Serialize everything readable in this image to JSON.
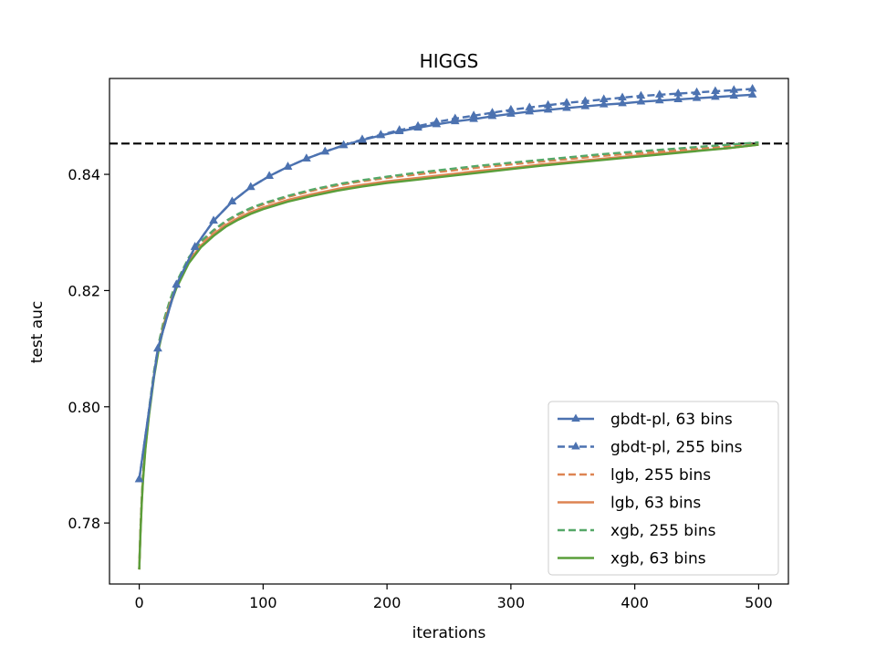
{
  "chart_data": {
    "type": "line",
    "title": "HIGGS",
    "xlabel": "iterations",
    "ylabel": "test auc",
    "xlim": [
      -24,
      524
    ],
    "ylim": [
      0.7695,
      0.8565
    ],
    "xticks": [
      0,
      100,
      200,
      300,
      400,
      500
    ],
    "xtick_labels": [
      "0",
      "100",
      "200",
      "300",
      "400",
      "500"
    ],
    "yticks": [
      0.78,
      0.8,
      0.82,
      0.84
    ],
    "ytick_labels": [
      "0.78",
      "0.80",
      "0.82",
      "0.84"
    ],
    "grid": false,
    "legend_position": "lower-right",
    "reference_line": {
      "y": 0.8453,
      "style": "dashed",
      "color": "#000000"
    },
    "series": [
      {
        "name": "gbdt-pl, 63 bins",
        "color": "#4c72b0",
        "line_style": "solid",
        "marker": "triangle",
        "x": [
          0,
          15,
          30,
          45,
          60,
          75,
          90,
          105,
          120,
          135,
          150,
          165,
          180,
          195,
          210,
          225,
          240,
          255,
          270,
          285,
          300,
          315,
          330,
          345,
          360,
          375,
          390,
          405,
          420,
          435,
          450,
          465,
          480,
          495
        ],
        "values": [
          0.7875,
          0.81,
          0.821,
          0.8275,
          0.832,
          0.8353,
          0.8378,
          0.8397,
          0.8413,
          0.8427,
          0.8439,
          0.845,
          0.8459,
          0.8467,
          0.8474,
          0.848,
          0.8486,
          0.8491,
          0.8495,
          0.85,
          0.8504,
          0.8508,
          0.8511,
          0.8514,
          0.8517,
          0.852,
          0.8522,
          0.8525,
          0.8527,
          0.8529,
          0.8531,
          0.8533,
          0.8535,
          0.8537
        ]
      },
      {
        "name": "gbdt-pl, 255 bins",
        "color": "#4c72b0",
        "line_style": "dashed",
        "marker": "triangle",
        "x": [
          0,
          15,
          30,
          45,
          60,
          75,
          90,
          105,
          120,
          135,
          150,
          165,
          180,
          195,
          210,
          225,
          240,
          255,
          270,
          285,
          300,
          315,
          330,
          345,
          360,
          375,
          390,
          405,
          420,
          435,
          450,
          465,
          480,
          495
        ],
        "values": [
          0.7875,
          0.81,
          0.821,
          0.8275,
          0.832,
          0.8353,
          0.8378,
          0.8397,
          0.8413,
          0.8427,
          0.8439,
          0.845,
          0.846,
          0.8468,
          0.8476,
          0.8483,
          0.849,
          0.8496,
          0.8501,
          0.8506,
          0.8511,
          0.8515,
          0.8519,
          0.8523,
          0.8526,
          0.8529,
          0.8532,
          0.8535,
          0.8537,
          0.8539,
          0.8541,
          0.8543,
          0.8545,
          0.8547
        ]
      },
      {
        "name": "lgb, 255 bins",
        "color": "#dd8452",
        "line_style": "dashed",
        "marker": "none",
        "x": [
          0,
          1,
          2,
          3,
          5,
          8,
          12,
          16,
          20,
          25,
          30,
          40,
          50,
          60,
          70,
          80,
          90,
          100,
          120,
          140,
          160,
          180,
          200,
          225,
          250,
          275,
          300,
          325,
          350,
          375,
          400,
          425,
          450,
          475,
          500
        ],
        "values": [
          0.772,
          0.779,
          0.784,
          0.788,
          0.7935,
          0.7995,
          0.806,
          0.811,
          0.8148,
          0.8183,
          0.8212,
          0.8255,
          0.8283,
          0.8302,
          0.8318,
          0.833,
          0.834,
          0.8348,
          0.8361,
          0.8372,
          0.8381,
          0.8388,
          0.8394,
          0.84,
          0.8406,
          0.8412,
          0.8417,
          0.8422,
          0.8427,
          0.8432,
          0.8436,
          0.844,
          0.8444,
          0.8448,
          0.8453
        ]
      },
      {
        "name": "lgb, 63 bins",
        "color": "#dd8452",
        "line_style": "solid",
        "marker": "none",
        "x": [
          0,
          1,
          2,
          3,
          5,
          8,
          12,
          16,
          20,
          25,
          30,
          40,
          50,
          60,
          70,
          80,
          90,
          100,
          120,
          140,
          160,
          180,
          200,
          225,
          250,
          275,
          300,
          325,
          350,
          375,
          400,
          425,
          450,
          475,
          500
        ],
        "values": [
          0.772,
          0.7785,
          0.7835,
          0.7875,
          0.793,
          0.799,
          0.8055,
          0.8105,
          0.8143,
          0.8178,
          0.8207,
          0.825,
          0.8278,
          0.8297,
          0.8313,
          0.8325,
          0.8335,
          0.8343,
          0.8356,
          0.8366,
          0.8375,
          0.8382,
          0.8388,
          0.8394,
          0.84,
          0.8406,
          0.8411,
          0.8417,
          0.8422,
          0.8427,
          0.8432,
          0.8437,
          0.8441,
          0.8445,
          0.8451
        ]
      },
      {
        "name": "xgb, 255 bins",
        "color": "#55a868",
        "line_style": "dashed",
        "marker": "none",
        "x": [
          0,
          1,
          2,
          3,
          5,
          8,
          12,
          16,
          20,
          25,
          30,
          40,
          50,
          60,
          70,
          80,
          90,
          100,
          120,
          140,
          160,
          180,
          200,
          225,
          250,
          275,
          300,
          325,
          350,
          375,
          400,
          425,
          450,
          475,
          500
        ],
        "values": [
          0.772,
          0.779,
          0.7842,
          0.7882,
          0.7937,
          0.7997,
          0.8062,
          0.8112,
          0.815,
          0.8185,
          0.8214,
          0.8257,
          0.8285,
          0.8304,
          0.832,
          0.8332,
          0.8342,
          0.835,
          0.8363,
          0.8374,
          0.8383,
          0.839,
          0.8396,
          0.8403,
          0.8409,
          0.8415,
          0.842,
          0.8425,
          0.843,
          0.8435,
          0.8439,
          0.8443,
          0.8447,
          0.8451,
          0.8455
        ]
      },
      {
        "name": "xgb, 63 bins",
        "color": "#5a9e3a",
        "line_style": "solid",
        "marker": "none",
        "x": [
          0,
          1,
          2,
          3,
          5,
          8,
          12,
          16,
          20,
          25,
          30,
          40,
          50,
          60,
          70,
          80,
          90,
          100,
          120,
          140,
          160,
          180,
          200,
          225,
          250,
          275,
          300,
          325,
          350,
          375,
          400,
          425,
          450,
          475,
          500
        ],
        "values": [
          0.772,
          0.7782,
          0.7832,
          0.7872,
          0.7927,
          0.7987,
          0.8052,
          0.8102,
          0.814,
          0.8175,
          0.8204,
          0.8247,
          0.8275,
          0.8294,
          0.831,
          0.8322,
          0.8332,
          0.834,
          0.8353,
          0.8363,
          0.8372,
          0.8379,
          0.8385,
          0.8391,
          0.8397,
          0.8403,
          0.8409,
          0.8415,
          0.842,
          0.8425,
          0.843,
          0.8435,
          0.844,
          0.8445,
          0.8451
        ]
      }
    ]
  }
}
